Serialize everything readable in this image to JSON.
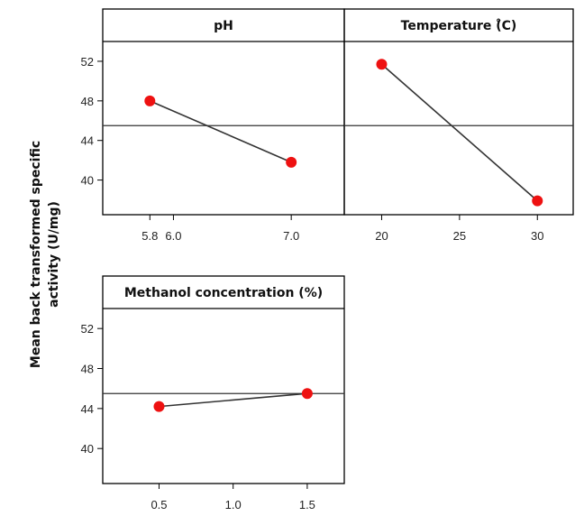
{
  "chart_data": {
    "type": "line",
    "ylabel_lines": [
      "Mean back transformed specific",
      "activity (U/mg)"
    ],
    "yticks": [
      40,
      44,
      48,
      52
    ],
    "ylim": [
      36.5,
      54
    ],
    "mean_line": 45.5,
    "marker_color": "#ee1111",
    "line_color": "#333333",
    "panels": [
      {
        "title": "pH",
        "xticks": [
          5.8,
          6.0,
          7.0
        ],
        "xtick_labels": [
          "5.8",
          "6.0",
          "7.0"
        ],
        "xlim": [
          5.4,
          7.45
        ],
        "x": [
          5.8,
          7.0
        ],
        "y": [
          48.0,
          41.8
        ]
      },
      {
        "title": "Temperature (̊C)",
        "xticks": [
          20,
          25,
          30
        ],
        "xtick_labels": [
          "20",
          "25",
          "30"
        ],
        "xlim": [
          17.6,
          32.3
        ],
        "x": [
          20,
          30
        ],
        "y": [
          51.7,
          37.9
        ]
      },
      {
        "title": "Methanol concentration (%)",
        "xticks": [
          0.5,
          1.0,
          1.5
        ],
        "xtick_labels": [
          "0.5",
          "1.0",
          "1.5"
        ],
        "xlim": [
          0.12,
          1.75
        ],
        "x": [
          0.5,
          1.5
        ],
        "y": [
          44.2,
          45.5
        ]
      }
    ]
  }
}
